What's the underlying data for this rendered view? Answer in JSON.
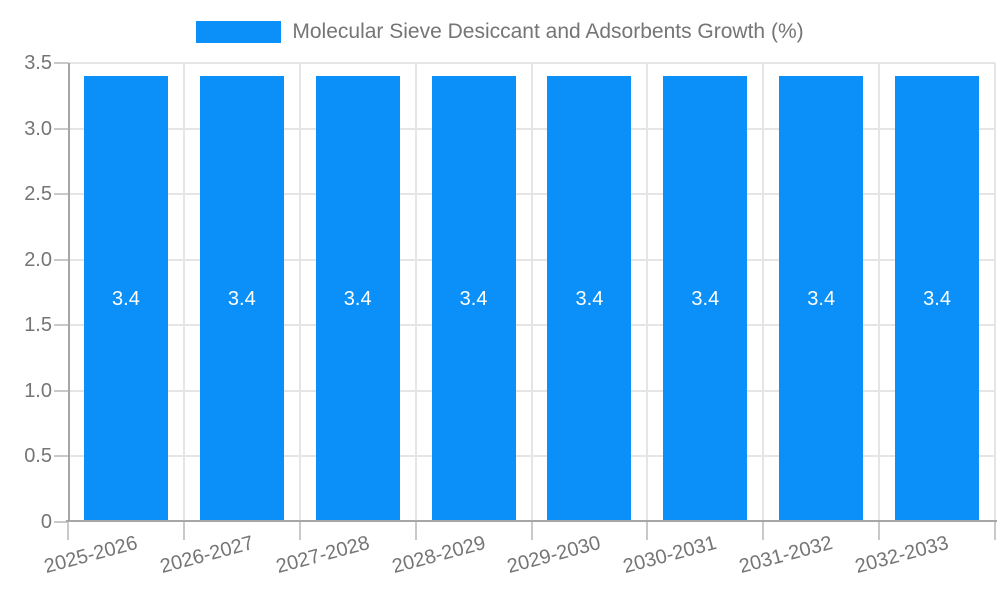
{
  "chart_data": {
    "type": "bar",
    "title": "Molecular Sieve Desiccant and Adsorbents Growth (%)",
    "legend": {
      "label": "Molecular Sieve Desiccant and Adsorbents Growth (%)",
      "position": "top-center"
    },
    "categories": [
      "2025-2026",
      "2026-2027",
      "2027-2028",
      "2028-2029",
      "2029-2030",
      "2030-2031",
      "2031-2032",
      "2032-2033"
    ],
    "series": [
      {
        "name": "Molecular Sieve Desiccant and Adsorbents Growth (%)",
        "values": [
          3.4,
          3.4,
          3.4,
          3.4,
          3.4,
          3.4,
          3.4,
          3.4
        ]
      }
    ],
    "bar_value_labels": [
      "3.4",
      "3.4",
      "3.4",
      "3.4",
      "3.4",
      "3.4",
      "3.4",
      "3.4"
    ],
    "xlabel": "",
    "ylabel": "",
    "ylim": [
      0,
      3.5
    ],
    "yticks": [
      0,
      0.5,
      1,
      1.5,
      2,
      2.5,
      3,
      3.5
    ],
    "ytick_labels": [
      "0",
      "0.5",
      "1.0",
      "1.5",
      "2.0",
      "2.5",
      "3.0",
      "3.5"
    ],
    "x_label_rotation_deg": -15,
    "grid": true,
    "colors": {
      "bar": "#0A90F8",
      "grid": "#E5E5E5",
      "axis": "#A6A6A6",
      "tick": "#C9C9C9",
      "text": "#757575",
      "bar_label": "#FFFFFF",
      "background": "#FFFFFF"
    }
  }
}
